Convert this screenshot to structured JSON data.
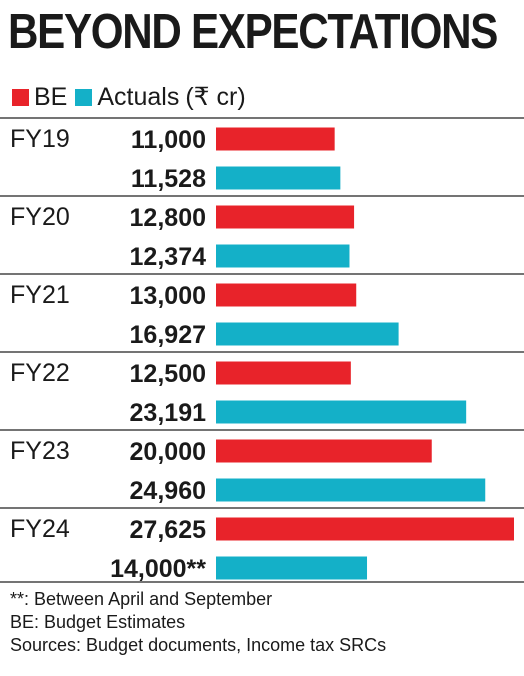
{
  "title": "BEYOND EXPECTATIONS",
  "legend": {
    "items": [
      {
        "label": "BE",
        "color": "#e8232a"
      },
      {
        "label": "Actuals",
        "color": "#14b0c8"
      }
    ],
    "unit": "(₹ cr)"
  },
  "chart_data": {
    "type": "bar",
    "orientation": "horizontal",
    "categories": [
      "FY19",
      "FY20",
      "FY21",
      "FY22",
      "FY23",
      "FY24"
    ],
    "series": [
      {
        "name": "BE",
        "color": "#e8232a",
        "values": [
          11000,
          12800,
          13000,
          12500,
          20000,
          27625
        ],
        "labels": [
          "11,000",
          "12,800",
          "13,000",
          "12,500",
          "20,000",
          "27,625"
        ]
      },
      {
        "name": "Actuals",
        "color": "#14b0c8",
        "values": [
          11528,
          12374,
          16927,
          23191,
          24960,
          14000
        ],
        "labels": [
          "11,528",
          "12,374",
          "16,927",
          "23,191",
          "24,960",
          "14,000**"
        ]
      }
    ],
    "xlim": [
      0,
      27625
    ],
    "grid": false
  },
  "footnotes": [
    "**: Between April and September",
    "BE: Budget Estimates",
    "Sources: Budget documents, Income tax SRCs"
  ]
}
